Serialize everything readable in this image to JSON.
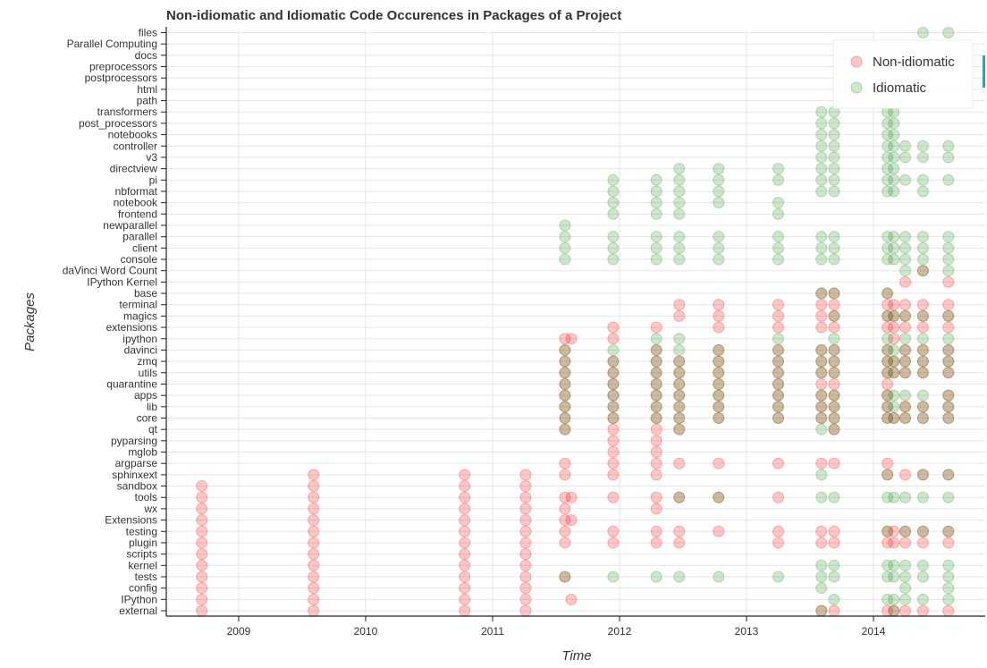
{
  "chart_data": {
    "type": "scatter",
    "title": "Non-idiomatic and Idiomatic Code Occurences in Packages of a Project",
    "xlabel": "Time",
    "ylabel": "Packages",
    "x_ticks": [
      "2009",
      "2010",
      "2011",
      "2012",
      "2013",
      "2014"
    ],
    "xlim": [
      2008.43,
      2014.88
    ],
    "categories": [
      "external",
      "IPython",
      "config",
      "tests",
      "kernel",
      "scripts",
      "plugin",
      "testing",
      "Extensions",
      "wx",
      "tools",
      "sandbox",
      "sphinxext",
      "argparse",
      "mglob",
      "pyparsing",
      "qt",
      "core",
      "lib",
      "apps",
      "quarantine",
      "utils",
      "zmq",
      "davinci",
      "ipython",
      "extensions",
      "magics",
      "terminal",
      "base",
      "IPython Kernel",
      "daVinci Word Count",
      "console",
      "client",
      "parallel",
      "newparallel",
      "frontend",
      "notebook",
      "nbformat",
      "pi",
      "directview",
      "v3",
      "controller",
      "notebooks",
      "post_processors",
      "transformers",
      "path",
      "html",
      "postprocessors",
      "preprocessors",
      "docs",
      "Parallel Computing",
      "files"
    ],
    "grid": true,
    "legend_position": "top-right",
    "series": [
      {
        "name": "Non-idiomatic",
        "color": "#ff0000",
        "points": [
          {
            "x": 2008.71,
            "y": [
              "external",
              "IPython",
              "config",
              "tests",
              "kernel",
              "scripts",
              "plugin",
              "testing",
              "Extensions",
              "wx",
              "tools",
              "sandbox"
            ]
          },
          {
            "x": 2009.59,
            "y": [
              "external",
              "IPython",
              "config",
              "tests",
              "kernel",
              "scripts",
              "plugin",
              "testing",
              "Extensions",
              "wx",
              "tools",
              "sandbox",
              "sphinxext"
            ]
          },
          {
            "x": 2010.78,
            "y": [
              "external",
              "IPython",
              "config",
              "tests",
              "kernel",
              "scripts",
              "plugin",
              "testing",
              "Extensions",
              "wx",
              "tools",
              "sandbox",
              "sphinxext"
            ]
          },
          {
            "x": 2011.26,
            "y": [
              "external",
              "IPython",
              "config",
              "tests",
              "kernel",
              "scripts",
              "plugin",
              "testing",
              "Extensions",
              "wx",
              "tools",
              "sandbox",
              "sphinxext"
            ]
          },
          {
            "x": 2011.57,
            "y": [
              "tests",
              "plugin",
              "testing",
              "Extensions",
              "wx",
              "tools",
              "sphinxext",
              "argparse",
              "qt",
              "core",
              "lib",
              "apps",
              "quarantine",
              "utils",
              "zmq",
              "davinci",
              "ipython"
            ]
          },
          {
            "x": 2011.62,
            "y": [
              "IPython",
              "Extensions",
              "tools",
              "ipython"
            ]
          },
          {
            "x": 2011.95,
            "y": [
              "plugin",
              "testing",
              "tools",
              "sphinxext",
              "argparse",
              "mglob",
              "pyparsing",
              "qt",
              "core",
              "lib",
              "apps",
              "quarantine",
              "utils",
              "zmq",
              "ipython",
              "extensions"
            ]
          },
          {
            "x": 2012.29,
            "y": [
              "plugin",
              "testing",
              "wx",
              "tools",
              "sphinxext",
              "argparse",
              "mglob",
              "pyparsing",
              "qt",
              "core",
              "lib",
              "apps",
              "quarantine",
              "utils",
              "zmq",
              "davinci",
              "extensions"
            ]
          },
          {
            "x": 2012.47,
            "y": [
              "plugin",
              "testing",
              "tools",
              "argparse",
              "qt",
              "core",
              "lib",
              "apps",
              "quarantine",
              "utils",
              "zmq",
              "magics",
              "terminal"
            ]
          },
          {
            "x": 2012.78,
            "y": [
              "testing",
              "tools",
              "argparse",
              "core",
              "lib",
              "apps",
              "quarantine",
              "utils",
              "zmq",
              "davinci",
              "extensions",
              "magics",
              "terminal"
            ]
          },
          {
            "x": 2013.25,
            "y": [
              "plugin",
              "testing",
              "tools",
              "argparse",
              "core",
              "lib",
              "apps",
              "quarantine",
              "utils",
              "zmq",
              "davinci",
              "extensions",
              "magics",
              "terminal"
            ]
          },
          {
            "x": 2013.59,
            "y": [
              "external",
              "plugin",
              "testing",
              "argparse",
              "core",
              "lib",
              "apps",
              "quarantine",
              "utils",
              "zmq",
              "davinci",
              "extensions",
              "magics",
              "terminal",
              "base"
            ]
          },
          {
            "x": 2013.69,
            "y": [
              "external",
              "plugin",
              "testing",
              "argparse",
              "qt",
              "core",
              "lib",
              "apps",
              "quarantine",
              "utils",
              "zmq",
              "davinci",
              "extensions",
              "magics",
              "terminal",
              "base"
            ]
          },
          {
            "x": 2014.11,
            "y": [
              "external",
              "plugin",
              "testing",
              "argparse",
              "sphinxext",
              "core",
              "lib",
              "apps",
              "quarantine",
              "utils",
              "zmq",
              "davinci",
              "extensions",
              "magics",
              "terminal",
              "base"
            ]
          },
          {
            "x": 2014.16,
            "y": [
              "external",
              "plugin",
              "testing",
              "core",
              "utils",
              "zmq",
              "ipython",
              "extensions",
              "magics",
              "terminal"
            ]
          },
          {
            "x": 2014.25,
            "y": [
              "external",
              "plugin",
              "testing",
              "sphinxext",
              "core",
              "lib",
              "utils",
              "zmq",
              "davinci",
              "extensions",
              "magics",
              "terminal",
              "IPython Kernel"
            ]
          },
          {
            "x": 2014.39,
            "y": [
              "external",
              "plugin",
              "testing",
              "sphinxext",
              "core",
              "lib",
              "utils",
              "zmq",
              "davinci",
              "extensions",
              "magics",
              "terminal",
              "daVinci Word Count"
            ]
          },
          {
            "x": 2014.59,
            "y": [
              "external",
              "plugin",
              "testing",
              "sphinxext",
              "core",
              "lib",
              "apps",
              "utils",
              "zmq",
              "davinci",
              "extensions",
              "magics",
              "terminal",
              "IPython Kernel"
            ]
          }
        ]
      },
      {
        "name": "Idiomatic",
        "color": "#228b22",
        "points": [
          {
            "x": 2011.57,
            "y": [
              "tests",
              "qt",
              "core",
              "lib",
              "apps",
              "quarantine",
              "utils",
              "zmq",
              "davinci",
              "console",
              "client",
              "parallel",
              "newparallel"
            ]
          },
          {
            "x": 2011.95,
            "y": [
              "tests",
              "core",
              "lib",
              "apps",
              "quarantine",
              "utils",
              "zmq",
              "davinci",
              "console",
              "client",
              "parallel",
              "frontend",
              "notebook",
              "nbformat",
              "pi"
            ]
          },
          {
            "x": 2012.29,
            "y": [
              "tests",
              "core",
              "lib",
              "apps",
              "quarantine",
              "utils",
              "zmq",
              "davinci",
              "ipython",
              "console",
              "client",
              "parallel",
              "frontend",
              "notebook",
              "nbformat",
              "pi"
            ]
          },
          {
            "x": 2012.47,
            "y": [
              "tests",
              "tools",
              "qt",
              "core",
              "lib",
              "apps",
              "quarantine",
              "utils",
              "zmq",
              "davinci",
              "ipython",
              "console",
              "client",
              "parallel",
              "frontend",
              "notebook",
              "nbformat",
              "pi",
              "directview"
            ]
          },
          {
            "x": 2012.78,
            "y": [
              "tests",
              "tools",
              "core",
              "lib",
              "apps",
              "quarantine",
              "utils",
              "zmq",
              "davinci",
              "console",
              "client",
              "parallel",
              "notebook",
              "nbformat",
              "pi",
              "directview"
            ]
          },
          {
            "x": 2013.25,
            "y": [
              "tests",
              "core",
              "lib",
              "apps",
              "quarantine",
              "utils",
              "zmq",
              "davinci",
              "ipython",
              "console",
              "client",
              "parallel",
              "frontend",
              "notebook",
              "pi",
              "directview"
            ]
          },
          {
            "x": 2013.59,
            "y": [
              "external",
              "config",
              "tests",
              "kernel",
              "tools",
              "sphinxext",
              "qt",
              "core",
              "lib",
              "apps",
              "utils",
              "zmq",
              "davinci",
              "base",
              "console",
              "client",
              "parallel",
              "nbformat",
              "pi",
              "directview",
              "v3",
              "controller",
              "notebooks",
              "post_processors",
              "transformers"
            ]
          },
          {
            "x": 2013.69,
            "y": [
              "IPython",
              "tests",
              "kernel",
              "tools",
              "qt",
              "core",
              "lib",
              "apps",
              "utils",
              "zmq",
              "davinci",
              "ipython",
              "magics",
              "base",
              "console",
              "client",
              "parallel",
              "nbformat",
              "pi",
              "directview",
              "v3",
              "controller",
              "notebooks",
              "post_processors",
              "transformers"
            ]
          },
          {
            "x": 2014.11,
            "y": [
              "IPython",
              "tests",
              "kernel",
              "testing",
              "tools",
              "sphinxext",
              "core",
              "lib",
              "apps",
              "utils",
              "zmq",
              "davinci",
              "ipython",
              "magics",
              "base",
              "console",
              "client",
              "parallel",
              "nbformat",
              "pi",
              "directview",
              "v3",
              "controller",
              "notebooks",
              "post_processors",
              "transformers",
              "path"
            ]
          },
          {
            "x": 2014.16,
            "y": [
              "external",
              "IPython",
              "tests",
              "kernel",
              "tools",
              "core",
              "lib",
              "apps",
              "utils",
              "zmq",
              "davinci",
              "magics",
              "console",
              "client",
              "parallel",
              "nbformat",
              "pi",
              "directview",
              "v3",
              "controller",
              "notebooks",
              "post_processors",
              "transformers"
            ]
          },
          {
            "x": 2014.25,
            "y": [
              "IPython",
              "config",
              "tests",
              "kernel",
              "testing",
              "tools",
              "core",
              "lib",
              "apps",
              "utils",
              "zmq",
              "davinci",
              "ipython",
              "magics",
              "daVinci Word Count",
              "console",
              "client",
              "parallel",
              "pi",
              "v3",
              "controller"
            ]
          },
          {
            "x": 2014.39,
            "y": [
              "IPython",
              "tests",
              "kernel",
              "testing",
              "tools",
              "sphinxext",
              "core",
              "lib",
              "apps",
              "utils",
              "zmq",
              "davinci",
              "ipython",
              "magics",
              "daVinci Word Count",
              "console",
              "client",
              "parallel",
              "nbformat",
              "pi",
              "v3",
              "controller",
              "files"
            ]
          },
          {
            "x": 2014.59,
            "y": [
              "IPython",
              "config",
              "tests",
              "kernel",
              "testing",
              "tools",
              "sphinxext",
              "core",
              "lib",
              "apps",
              "utils",
              "zmq",
              "davinci",
              "ipython",
              "magics",
              "daVinci Word Count",
              "console",
              "client",
              "parallel",
              "pi",
              "v3",
              "controller",
              "files"
            ]
          }
        ]
      }
    ]
  }
}
